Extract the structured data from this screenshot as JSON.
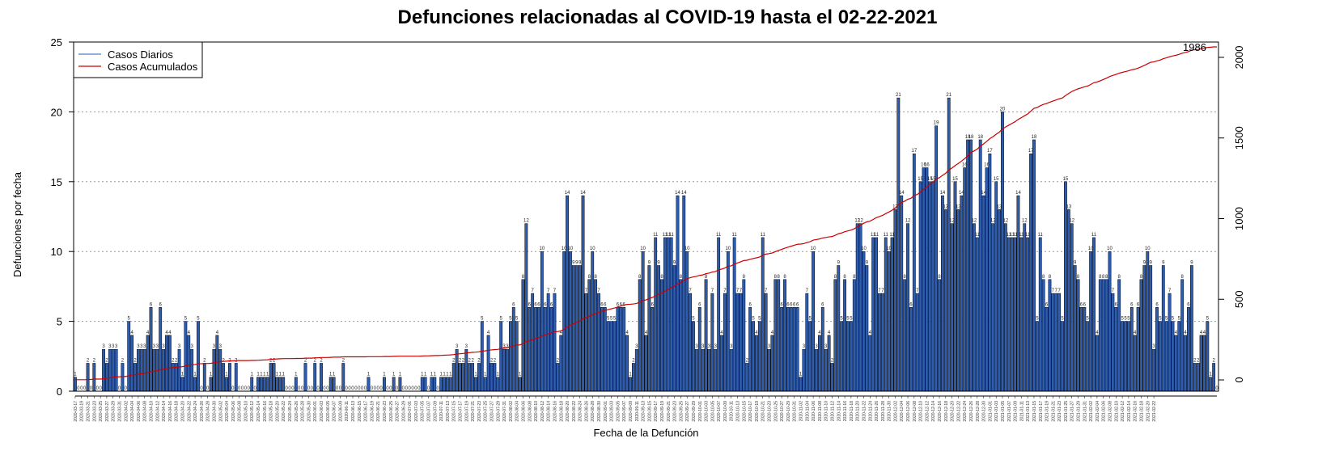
{
  "chart_data": {
    "type": "bar",
    "title": "Defunciones relacionadas al COVID-19 hasta el 02-22-2021",
    "xlabel": "Fecha de la Defunción",
    "ylabel": "Defunciones por fecha",
    "ylim": [
      0,
      25
    ],
    "y_ticks": [
      0,
      5,
      10,
      15,
      20,
      25
    ],
    "y2lim": [
      -70,
      2095
    ],
    "y2_ticks": [
      0,
      500,
      1000,
      1500,
      2000
    ],
    "grid": "horizontal dotted",
    "legend_position": "top-left",
    "legend": [
      {
        "label": "Casos Diarios",
        "color": "#4f81bd"
      },
      {
        "label": "Casos Acumulados",
        "color": "#cc0000"
      }
    ],
    "bar_fill": "#2e5db0",
    "bar_stroke": "#000000",
    "cumulative_color": "#cc0000",
    "final_cumulative_label": "1986",
    "date_start": "2020-03-17",
    "date_end": "2021-02-22",
    "tick_dates": [
      "2020-03-17",
      "2020-03-19",
      "2020-03-21",
      "2020-03-23",
      "2020-03-25",
      "2020-03-27",
      "2020-03-29",
      "2020-03-31",
      "2020-04-02",
      "2020-04-04",
      "2020-04-06",
      "2020-04-08",
      "2020-04-10",
      "2020-04-12",
      "2020-04-14",
      "2020-04-16",
      "2020-04-18",
      "2020-04-20",
      "2020-04-22",
      "2020-04-24",
      "2020-04-26",
      "2020-04-28",
      "2020-04-30",
      "2020-05-02",
      "2020-05-04",
      "2020-05-06",
      "2020-05-08",
      "2020-05-10",
      "2020-05-12",
      "2020-05-14",
      "2020-05-16",
      "2020-05-18",
      "2020-05-20",
      "2020-05-22",
      "2020-05-24",
      "2020-05-26",
      "2020-05-28",
      "2020-05-30",
      "2020-06-01",
      "2020-06-03",
      "2020-06-05",
      "2020-06-07",
      "2020-06-09",
      "2020-06-11",
      "2020-06-13",
      "2020-06-15",
      "2020-06-17",
      "2020-06-19",
      "2020-06-21",
      "2020-06-23",
      "2020-06-25",
      "2020-06-27",
      "2020-06-29",
      "2020-07-01",
      "2020-07-03",
      "2020-07-05",
      "2020-07-07",
      "2020-07-09",
      "2020-07-11",
      "2020-07-13",
      "2020-07-15",
      "2020-07-17",
      "2020-07-19",
      "2020-07-21",
      "2020-07-23",
      "2020-07-25",
      "2020-07-27",
      "2020-07-29",
      "2020-07-31",
      "2020-08-02",
      "2020-08-04",
      "2020-08-06",
      "2020-08-08",
      "2020-08-10",
      "2020-08-12",
      "2020-08-14",
      "2020-08-16",
      "2020-08-18",
      "2020-08-20",
      "2020-08-22",
      "2020-08-24",
      "2020-08-26",
      "2020-08-28",
      "2020-08-30",
      "2020-09-01",
      "2020-09-03",
      "2020-09-05",
      "2020-09-07",
      "2020-09-09",
      "2020-09-11",
      "2020-09-13",
      "2020-09-15",
      "2020-09-17",
      "2020-09-19",
      "2020-09-21",
      "2020-09-23",
      "2020-09-25",
      "2020-09-27",
      "2020-09-29",
      "2020-10-01",
      "2020-10-03",
      "2020-10-05",
      "2020-10-07",
      "2020-10-09",
      "2020-10-11",
      "2020-10-13",
      "2020-10-15",
      "2020-10-17",
      "2020-10-19",
      "2020-10-21",
      "2020-10-23",
      "2020-10-25",
      "2020-10-27",
      "2020-10-29",
      "2020-10-31",
      "2020-11-02",
      "2020-11-04",
      "2020-11-06",
      "2020-11-08",
      "2020-11-10",
      "2020-11-12",
      "2020-11-14",
      "2020-11-16",
      "2020-11-18",
      "2020-11-20",
      "2020-11-22",
      "2020-11-24",
      "2020-11-26",
      "2020-11-28",
      "2020-11-30",
      "2020-12-02",
      "2020-12-04",
      "2020-12-06",
      "2020-12-08",
      "2020-12-10",
      "2020-12-12",
      "2020-12-14",
      "2020-12-16",
      "2020-12-18",
      "2020-12-20",
      "2020-12-22",
      "2020-12-24",
      "2020-12-26",
      "2020-12-28",
      "2020-12-30",
      "2021-01-01",
      "2021-01-03",
      "2021-01-05",
      "2021-01-07",
      "2021-01-09",
      "2021-01-11",
      "2021-01-13",
      "2021-01-15",
      "2021-01-17",
      "2021-01-19",
      "2021-01-21",
      "2021-01-23",
      "2021-01-25",
      "2021-01-27",
      "2021-01-29",
      "2021-01-31",
      "2021-02-02",
      "2021-02-04",
      "2021-02-06",
      "2021-02-08",
      "2021-02-10",
      "2021-02-12",
      "2021-02-14",
      "2021-02-16",
      "2021-02-18",
      "2021-02-20",
      "2021-02-22"
    ],
    "daily_values": [
      1,
      0,
      0,
      0,
      2,
      0,
      2,
      0,
      0,
      3,
      2,
      3,
      3,
      3,
      0,
      2,
      0,
      5,
      4,
      2,
      3,
      3,
      3,
      4,
      6,
      3,
      3,
      6,
      3,
      4,
      4,
      2,
      2,
      3,
      1,
      5,
      4,
      3,
      1,
      5,
      0,
      2,
      0,
      1,
      3,
      4,
      3,
      2,
      1,
      2,
      0,
      2,
      0,
      0,
      0,
      0,
      1,
      0,
      1,
      1,
      1,
      1,
      2,
      2,
      1,
      1,
      1,
      0,
      0,
      0,
      1,
      0,
      0,
      2,
      0,
      0,
      2,
      0,
      2,
      0,
      0,
      1,
      1,
      0,
      0,
      2,
      0,
      0,
      0,
      0,
      0,
      0,
      0,
      1,
      0,
      0,
      0,
      0,
      1,
      0,
      0,
      1,
      0,
      1,
      0,
      0,
      0,
      0,
      0,
      0,
      1,
      1,
      0,
      1,
      1,
      0,
      1,
      1,
      1,
      1,
      2,
      3,
      2,
      2,
      3,
      2,
      2,
      1,
      2,
      5,
      1,
      4,
      2,
      2,
      1,
      5,
      3,
      3,
      5,
      6,
      5,
      1,
      8,
      12,
      6,
      7,
      6,
      6,
      10,
      6,
      7,
      6,
      7,
      2,
      4,
      10,
      14,
      10,
      9,
      9,
      9,
      14,
      7,
      8,
      10,
      8,
      7,
      6,
      6,
      5,
      5,
      5,
      6,
      6,
      6,
      4,
      1,
      2,
      3,
      8,
      10,
      4,
      9,
      6,
      11,
      9,
      8,
      11,
      11,
      11,
      9,
      14,
      8,
      14,
      10,
      7,
      5,
      3,
      6,
      3,
      8,
      3,
      7,
      3,
      11,
      4,
      7,
      10,
      3,
      11,
      7,
      7,
      8,
      2,
      6,
      5,
      4,
      5,
      11,
      7,
      3,
      4,
      8,
      8,
      6,
      8,
      6,
      6,
      6,
      6,
      1,
      3,
      7,
      5,
      10,
      3,
      4,
      6,
      3,
      4,
      2,
      8,
      9,
      5,
      8,
      5,
      5,
      8,
      12,
      12,
      10,
      9,
      4,
      11,
      11,
      7,
      7,
      11,
      10,
      11,
      13,
      21,
      14,
      8,
      12,
      6,
      17,
      7,
      15,
      16,
      16,
      15,
      15,
      19,
      8,
      14,
      13,
      21,
      12,
      15,
      13,
      14,
      16,
      18,
      18,
      12,
      11,
      18,
      14,
      16,
      17,
      12,
      15,
      13,
      20,
      12,
      11,
      11,
      11,
      14,
      11,
      12,
      11,
      17,
      18,
      5,
      11,
      8,
      6,
      8,
      7,
      7,
      7,
      5,
      15,
      13,
      12,
      9,
      8,
      6,
      6,
      5,
      10,
      11,
      4,
      8,
      8,
      8,
      10,
      7,
      6,
      8,
      5,
      5,
      5,
      6,
      4,
      6,
      8,
      9,
      10,
      9,
      3,
      6,
      5,
      9,
      5,
      7,
      5,
      4,
      5,
      8,
      4,
      6,
      9,
      2,
      2,
      4,
      4,
      5,
      1,
      2,
      0
    ]
  }
}
